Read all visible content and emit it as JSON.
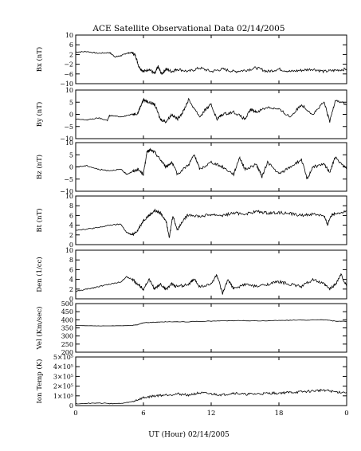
{
  "chart_data": {
    "type": "line",
    "title": "ACE Satellite Observational Data   02/14/2005",
    "xlabel": "UT (Hour)   02/14/2005",
    "x_ticks": [
      "0",
      "6",
      "12",
      "18",
      "0"
    ],
    "xlim": [
      0,
      24
    ],
    "panels": [
      {
        "id": "bx",
        "ylabel": "Bx (nT)",
        "ylim": [
          -10,
          10
        ],
        "y_ticks": [
          "10",
          "6",
          "2",
          "−2",
          "−6",
          "−10"
        ],
        "y_tick_values": [
          10,
          6,
          2,
          -2,
          -6,
          -10
        ],
        "series": {
          "x": [
            0,
            1,
            2,
            3,
            3.5,
            4,
            4.5,
            5,
            5.3,
            5.6,
            6,
            6.5,
            7,
            7.3,
            7.6,
            8,
            8.5,
            9,
            10,
            11,
            12,
            13,
            14,
            15,
            16,
            17,
            18,
            19,
            20,
            21,
            22,
            23,
            24
          ],
          "y": [
            3,
            3.2,
            2.5,
            2.8,
            1,
            1.5,
            2.5,
            2.8,
            1.5,
            -3,
            -5,
            -4,
            -6,
            -3,
            -6,
            -4,
            -5,
            -4,
            -5,
            -3.5,
            -5,
            -4,
            -5,
            -4.5,
            -3.5,
            -5,
            -4,
            -5,
            -4.5,
            -4,
            -5,
            -4.5,
            -4
          ]
        }
      },
      {
        "id": "by",
        "ylabel": "By (nT)",
        "ylim": [
          -10,
          10
        ],
        "y_ticks": [
          "10",
          "5",
          "0",
          "−5",
          "−10"
        ],
        "y_tick_values": [
          10,
          5,
          0,
          -5,
          -10
        ],
        "series": {
          "x": [
            0,
            1,
            2,
            2.8,
            3,
            4,
            5,
            5.5,
            5.8,
            6,
            6.5,
            7,
            7.5,
            8,
            8.5,
            9,
            9.5,
            10,
            11,
            11.5,
            12,
            12.5,
            13,
            14,
            15,
            15.5,
            16,
            17,
            18,
            19,
            20,
            21,
            22,
            22.5,
            23,
            24
          ],
          "y": [
            -2,
            -2.3,
            -1.5,
            -2.5,
            -0.5,
            -1,
            0,
            0.5,
            4,
            6,
            5,
            4,
            -2,
            -3,
            0,
            -2,
            1,
            6,
            -1,
            2,
            4,
            -2,
            0,
            1,
            -2,
            2,
            1,
            3,
            2,
            -1,
            4,
            0,
            5,
            -3,
            6,
            4
          ]
        }
      },
      {
        "id": "bz",
        "ylabel": "Bz (nT)",
        "ylim": [
          -10,
          10
        ],
        "y_ticks": [
          "10",
          "5",
          "0",
          "−5",
          "−10"
        ],
        "y_tick_values": [
          10,
          5,
          0,
          -5,
          -10
        ],
        "series": {
          "x": [
            0,
            1,
            2,
            3,
            4,
            4.5,
            5,
            5.5,
            6,
            6.3,
            6.6,
            7,
            7.5,
            8,
            8.5,
            9,
            10,
            10.5,
            11,
            12,
            13,
            14,
            14.5,
            15,
            16,
            16.5,
            17,
            18,
            19,
            20,
            20.5,
            21,
            22,
            22.5,
            23,
            24
          ],
          "y": [
            0,
            0.5,
            -1,
            -1.5,
            -1,
            -3,
            -2,
            -1,
            -3,
            6,
            7,
            6,
            3,
            0,
            2,
            -3,
            1,
            5,
            -1,
            2,
            0,
            -3,
            4,
            -1,
            1,
            -4,
            2,
            -3,
            0,
            3,
            -5,
            0,
            1,
            -2,
            4,
            -1
          ]
        }
      },
      {
        "id": "bt",
        "ylabel": "Bt (nT)",
        "ylim": [
          0,
          10
        ],
        "y_ticks": [
          "10",
          "8",
          "6",
          "4",
          "2",
          "0"
        ],
        "y_tick_values": [
          10,
          8,
          6,
          4,
          2,
          0
        ],
        "series": {
          "x": [
            0,
            1,
            2,
            3,
            4,
            4.5,
            5,
            5.5,
            6,
            6.5,
            7,
            7.5,
            8,
            8.3,
            8.6,
            9,
            9.5,
            10,
            11,
            12,
            13,
            14,
            15,
            16,
            17,
            18,
            19,
            20,
            21,
            22,
            22.3,
            22.6,
            23,
            24
          ],
          "y": [
            3,
            3.2,
            3.5,
            4,
            4.2,
            2.5,
            2,
            3,
            5,
            6,
            7,
            6.5,
            5,
            1.5,
            6,
            3,
            5,
            6.2,
            5.8,
            6.2,
            6,
            6.5,
            6.3,
            6.8,
            6.5,
            6.6,
            6.4,
            6,
            6.3,
            6,
            4,
            6,
            6.5,
            6.8
          ]
        }
      },
      {
        "id": "den",
        "ylabel": "Den (1/cc)",
        "ylim": [
          0,
          10
        ],
        "y_ticks": [
          "10",
          "8",
          "6",
          "4",
          "2",
          "0"
        ],
        "y_tick_values": [
          10,
          8,
          6,
          4,
          2,
          0
        ],
        "series": {
          "x": [
            0,
            1,
            2,
            3,
            4,
            4.5,
            5,
            5.5,
            6,
            6.5,
            7,
            7.5,
            8,
            8.5,
            9,
            10,
            10.5,
            11,
            12,
            12.5,
            13,
            13.5,
            14,
            15,
            16,
            17,
            18,
            19,
            20,
            21,
            22,
            22.5,
            23,
            23.5,
            24
          ],
          "y": [
            1.5,
            2,
            2.5,
            3,
            3.5,
            4.5,
            4,
            3,
            2,
            4,
            2,
            3,
            2,
            3,
            2.5,
            3,
            4,
            2.5,
            3,
            5,
            1,
            4,
            2,
            3,
            2.5,
            3,
            3.5,
            3,
            2.5,
            4,
            3,
            2,
            3,
            5,
            2.5
          ]
        }
      },
      {
        "id": "vel",
        "ylabel": "Vel (Km/sec)",
        "ylim": [
          200,
          500
        ],
        "y_ticks": [
          "500",
          "450",
          "400",
          "350",
          "300",
          "250",
          "200"
        ],
        "y_tick_values": [
          500,
          450,
          400,
          350,
          300,
          250,
          200
        ],
        "series": {
          "x": [
            0,
            2,
            4,
            5,
            5.5,
            6,
            7,
            8,
            10,
            12,
            14,
            16,
            18,
            20,
            22,
            23,
            24
          ],
          "y": [
            365,
            362,
            363,
            365,
            370,
            382,
            385,
            388,
            388,
            392,
            395,
            393,
            396,
            398,
            400,
            392,
            390
          ]
        }
      },
      {
        "id": "temp",
        "ylabel": "Ion Temp (K)",
        "ylim": [
          0,
          500000
        ],
        "y_ticks": [
          "5×10⁵",
          "4×10⁵",
          "3×10⁵",
          "2×10⁵",
          "1×10⁵",
          "0"
        ],
        "y_tick_values": [
          500000,
          400000,
          300000,
          200000,
          100000,
          0
        ],
        "series": {
          "x": [
            0,
            2,
            4,
            5,
            6,
            7,
            8,
            9,
            10,
            11,
            12,
            13,
            14,
            15,
            16,
            17,
            18,
            19,
            20,
            21,
            22,
            23,
            24
          ],
          "y": [
            20000,
            25000,
            20000,
            40000,
            80000,
            100000,
            110000,
            120000,
            110000,
            130000,
            120000,
            110000,
            130000,
            115000,
            120000,
            125000,
            130000,
            135000,
            140000,
            150000,
            160000,
            140000,
            135000
          ]
        }
      }
    ]
  }
}
